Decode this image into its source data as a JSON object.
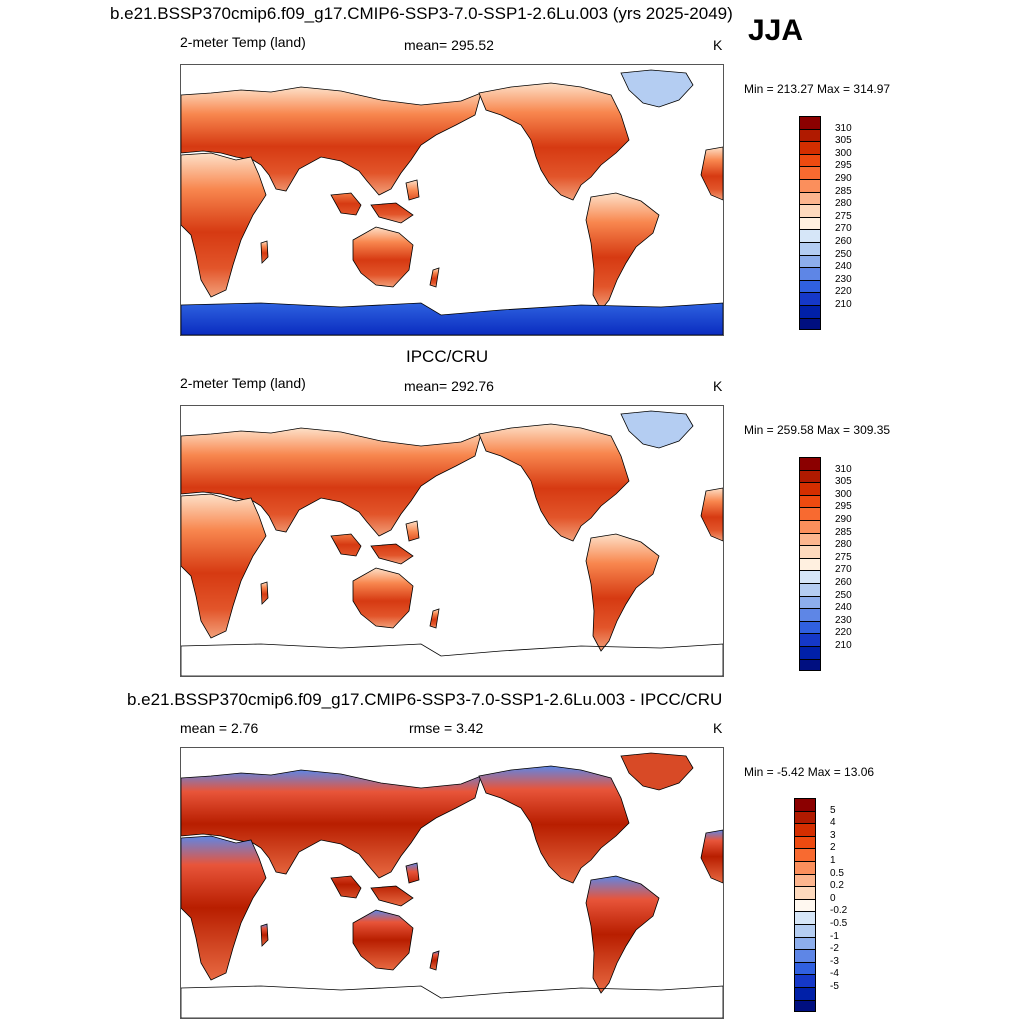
{
  "header": {
    "main_title": "b.e21.BSSP370cmip6.f09_g17.CMIP6-SSP3-7.0-SSP1-2.6Lu.003 (yrs 2025-2049)",
    "season": "JJA"
  },
  "panels": [
    {
      "id": "model",
      "title": "",
      "left_label": "2-meter Temp (land)",
      "center_label": "mean= 295.52",
      "units": "K",
      "minmax": "Min = 213.27 Max = 314.97",
      "antarctica_fill": true
    },
    {
      "id": "obs",
      "title": "IPCC/CRU",
      "left_label": "2-meter Temp (land)",
      "center_label": "mean= 292.76",
      "units": "K",
      "minmax": "Min = 259.58 Max = 309.35",
      "antarctica_fill": false
    },
    {
      "id": "diff",
      "title": "b.e21.BSSP370cmip6.f09_g17.CMIP6-SSP3-7.0-SSP1-2.6Lu.003 - IPCC/CRU",
      "left_label": "mean =   2.76",
      "center_label": "rmse =   3.42",
      "units": "K",
      "minmax": "Min =  -5.42 Max =  13.06",
      "antarctica_fill": false
    }
  ],
  "colorbars": {
    "temp": {
      "labels": [
        "310",
        "305",
        "300",
        "295",
        "290",
        "285",
        "280",
        "275",
        "270",
        "260",
        "250",
        "240",
        "230",
        "220",
        "210"
      ],
      "colors": [
        "#8b0000",
        "#b01a00",
        "#d42e00",
        "#ee4a10",
        "#f86a30",
        "#fb8f5c",
        "#fcb58e",
        "#fdd9bd",
        "#fff0e0",
        "#d6e6f8",
        "#b4cdf2",
        "#8daeec",
        "#5e86e6",
        "#3060e0",
        "#1538c8",
        "#0020a8",
        "#000f80"
      ]
    },
    "diff": {
      "labels": [
        "5",
        "4",
        "3",
        "2",
        "1",
        "0.5",
        "0.2",
        "0",
        "-0.2",
        "-0.5",
        "-1",
        "-2",
        "-3",
        "-4",
        "-5"
      ],
      "colors": [
        "#8b0000",
        "#b01a00",
        "#d42e00",
        "#ee4a10",
        "#f86a30",
        "#fb8f5c",
        "#fcb58e",
        "#fdd9bd",
        "#fff8f0",
        "#d6e6f8",
        "#b4cdf2",
        "#8daeec",
        "#5e86e6",
        "#3060e0",
        "#1538c8",
        "#0020a8",
        "#000f80"
      ]
    }
  }
}
